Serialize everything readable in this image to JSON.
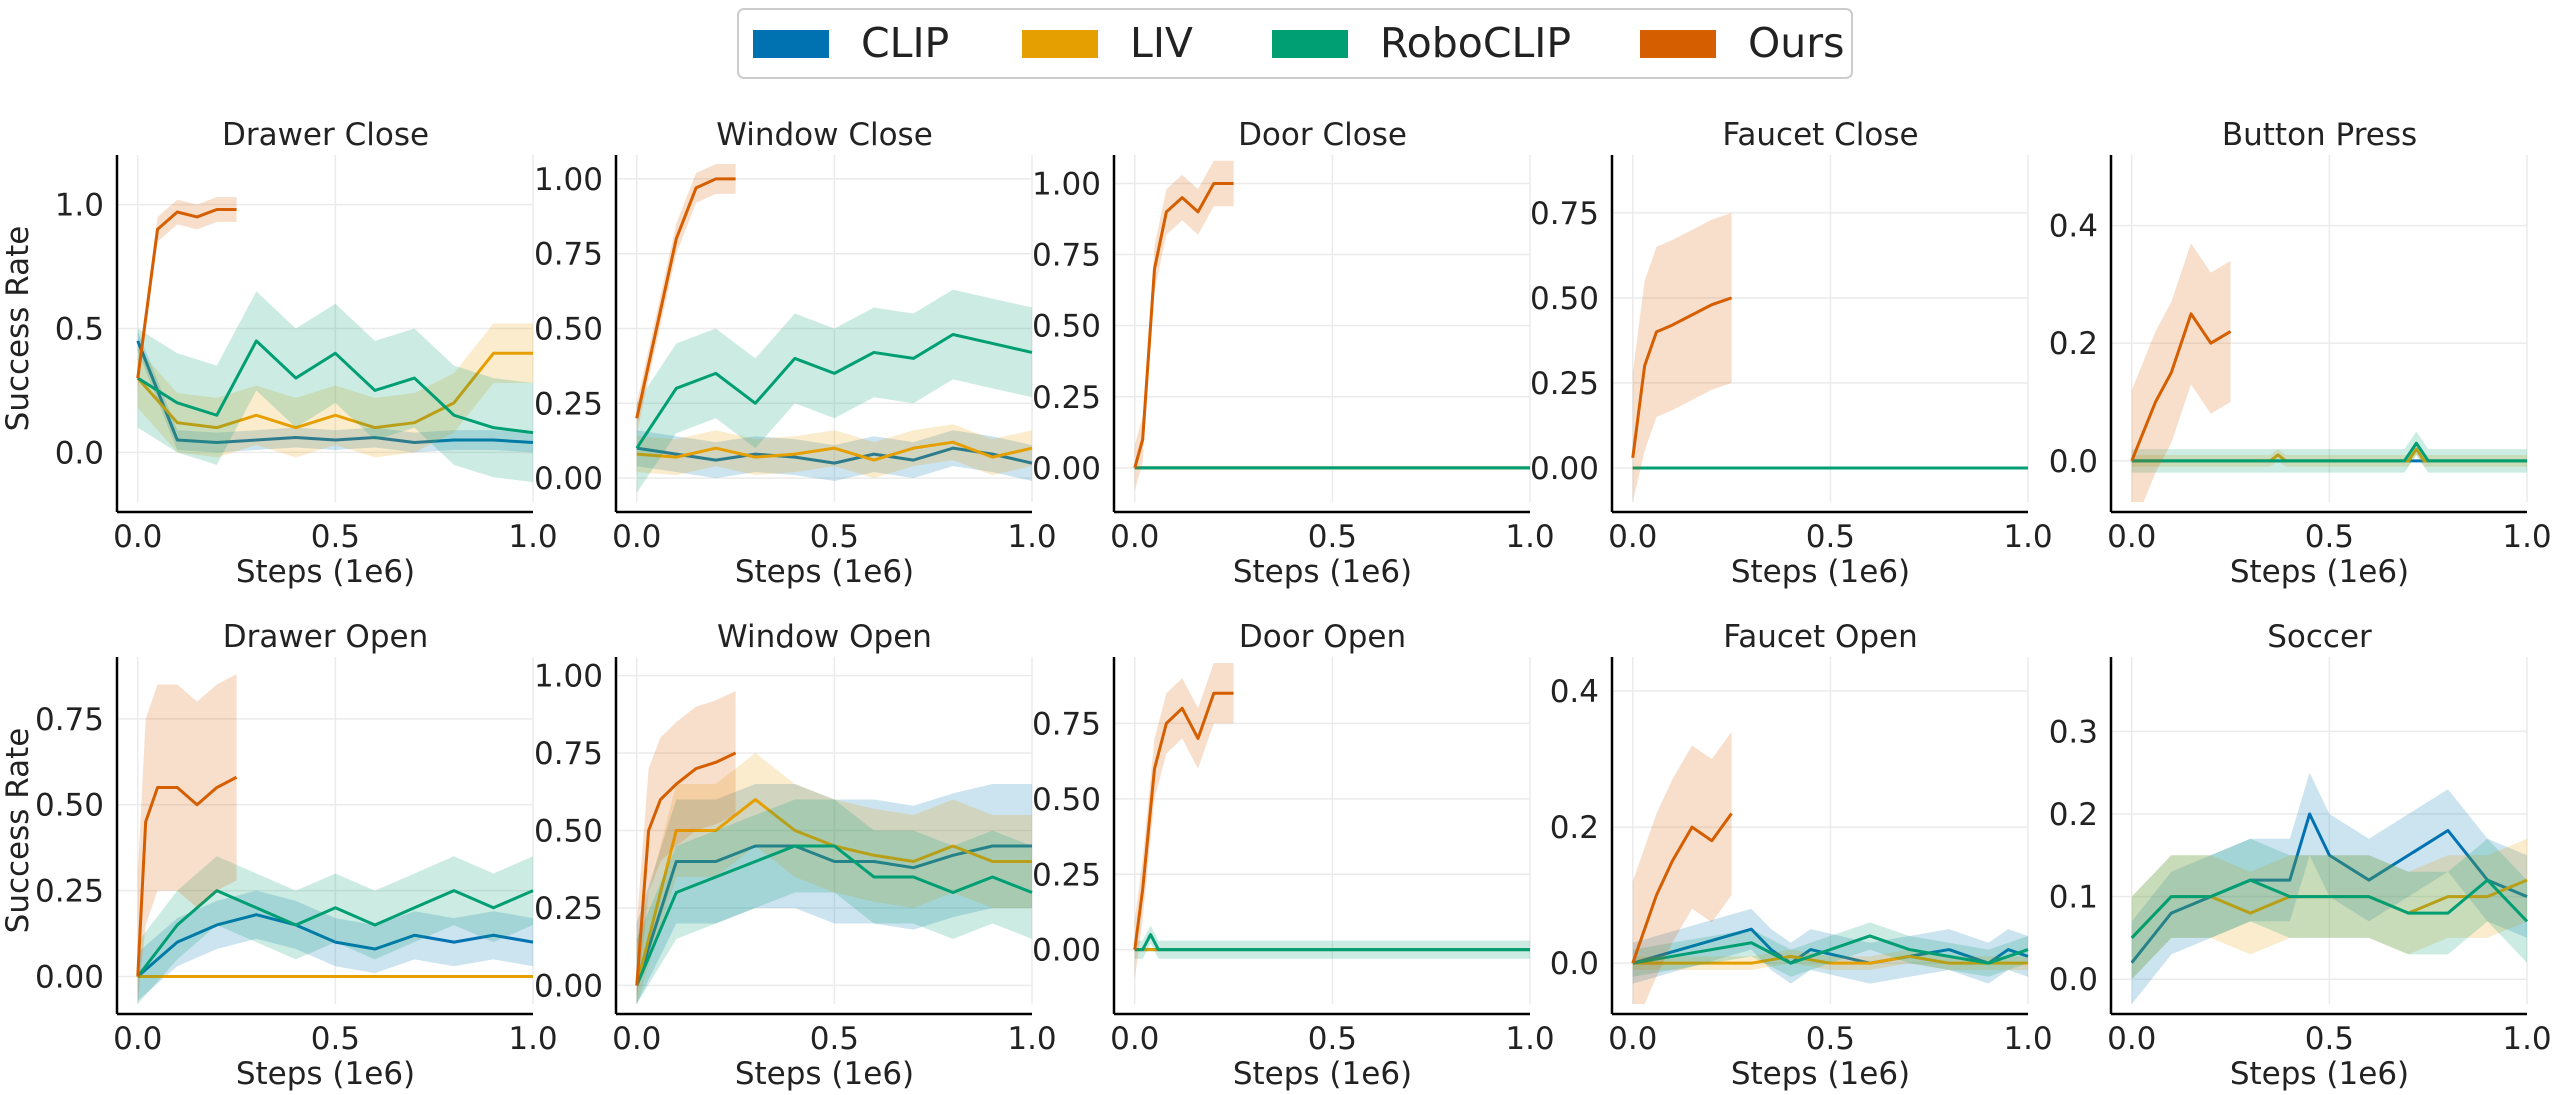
{
  "legend": [
    {
      "name": "CLIP",
      "color": "#0072b2"
    },
    {
      "name": "LIV",
      "color": "#e69f00"
    },
    {
      "name": "RoboCLIP",
      "color": "#009e73"
    },
    {
      "name": "Ours",
      "color": "#d55e00"
    }
  ],
  "chart_data": [
    {
      "type": "line",
      "title": "Drawer Close",
      "xlabel": "Steps (1e6)",
      "ylabel": "Success Rate",
      "xlim": [
        -0.05,
        1.0
      ],
      "ylim": [
        -0.2,
        1.2
      ],
      "xticks": [
        "0.0",
        "0.5",
        "1.0"
      ],
      "yticks": [
        "0.0",
        "0.5",
        "1.0"
      ],
      "series": [
        {
          "name": "CLIP",
          "x": [
            0,
            0.1,
            0.2,
            0.3,
            0.4,
            0.5,
            0.6,
            0.7,
            0.8,
            0.9,
            1.0
          ],
          "y": [
            0.45,
            0.05,
            0.04,
            0.05,
            0.06,
            0.05,
            0.06,
            0.04,
            0.05,
            0.05,
            0.04
          ],
          "band": 0.04
        },
        {
          "name": "LIV",
          "x": [
            0,
            0.1,
            0.2,
            0.3,
            0.4,
            0.5,
            0.6,
            0.7,
            0.8,
            0.9,
            1.0
          ],
          "y": [
            0.3,
            0.12,
            0.1,
            0.15,
            0.1,
            0.15,
            0.1,
            0.12,
            0.2,
            0.4,
            0.4
          ],
          "band": 0.12
        },
        {
          "name": "RoboCLIP",
          "x": [
            0,
            0.1,
            0.2,
            0.3,
            0.4,
            0.5,
            0.6,
            0.7,
            0.8,
            0.9,
            1.0
          ],
          "y": [
            0.3,
            0.2,
            0.15,
            0.45,
            0.3,
            0.4,
            0.25,
            0.3,
            0.15,
            0.1,
            0.08
          ],
          "band": 0.2
        },
        {
          "name": "Ours",
          "x": [
            0,
            0.05,
            0.1,
            0.15,
            0.2,
            0.25
          ],
          "y": [
            0.3,
            0.9,
            0.97,
            0.95,
            0.98,
            0.98
          ],
          "band": 0.05
        }
      ]
    },
    {
      "type": "line",
      "title": "Window Close",
      "xlabel": "Steps (1e6)",
      "ylabel": "",
      "xlim": [
        -0.05,
        1.0
      ],
      "ylim": [
        -0.08,
        1.08
      ],
      "xticks": [
        "0.0",
        "0.5",
        "1.0"
      ],
      "yticks": [
        "0.00",
        "0.25",
        "0.50",
        "0.75",
        "1.00"
      ],
      "series": [
        {
          "name": "CLIP",
          "x": [
            0,
            0.1,
            0.2,
            0.3,
            0.4,
            0.5,
            0.6,
            0.7,
            0.8,
            0.9,
            1.0
          ],
          "y": [
            0.1,
            0.08,
            0.06,
            0.08,
            0.07,
            0.05,
            0.08,
            0.06,
            0.1,
            0.08,
            0.05
          ],
          "band": 0.06
        },
        {
          "name": "LIV",
          "x": [
            0,
            0.1,
            0.2,
            0.3,
            0.4,
            0.5,
            0.6,
            0.7,
            0.8,
            0.9,
            1.0
          ],
          "y": [
            0.08,
            0.07,
            0.1,
            0.07,
            0.08,
            0.1,
            0.06,
            0.1,
            0.12,
            0.07,
            0.1
          ],
          "band": 0.06
        },
        {
          "name": "RoboCLIP",
          "x": [
            0,
            0.1,
            0.2,
            0.3,
            0.4,
            0.5,
            0.6,
            0.7,
            0.8,
            0.9,
            1.0
          ],
          "y": [
            0.1,
            0.3,
            0.35,
            0.25,
            0.4,
            0.35,
            0.42,
            0.4,
            0.48,
            0.45,
            0.42
          ],
          "band": 0.15
        },
        {
          "name": "Ours",
          "x": [
            0,
            0.05,
            0.1,
            0.15,
            0.2,
            0.25
          ],
          "y": [
            0.2,
            0.5,
            0.8,
            0.97,
            1.0,
            1.0
          ],
          "band": 0.05
        }
      ]
    },
    {
      "type": "line",
      "title": "Door Close",
      "xlabel": "Steps (1e6)",
      "ylabel": "",
      "xlim": [
        -0.05,
        1.0
      ],
      "ylim": [
        -0.12,
        1.1
      ],
      "xticks": [
        "0.0",
        "0.5",
        "1.0"
      ],
      "yticks": [
        "0.00",
        "0.25",
        "0.50",
        "0.75",
        "1.00"
      ],
      "series": [
        {
          "name": "CLIP",
          "x": [
            0,
            1.0
          ],
          "y": [
            0,
            0
          ],
          "band": 0
        },
        {
          "name": "LIV",
          "x": [
            0,
            1.0
          ],
          "y": [
            0,
            0
          ],
          "band": 0
        },
        {
          "name": "RoboCLIP",
          "x": [
            0,
            1.0
          ],
          "y": [
            0,
            0
          ],
          "band": 0
        },
        {
          "name": "Ours",
          "x": [
            0,
            0.02,
            0.05,
            0.08,
            0.12,
            0.16,
            0.2,
            0.25
          ],
          "y": [
            0,
            0.1,
            0.7,
            0.9,
            0.95,
            0.9,
            1.0,
            1.0
          ],
          "band": 0.08
        }
      ]
    },
    {
      "type": "line",
      "title": "Faucet Close",
      "xlabel": "Steps (1e6)",
      "ylabel": "",
      "xlim": [
        -0.05,
        1.0
      ],
      "ylim": [
        -0.1,
        0.92
      ],
      "xticks": [
        "0.0",
        "0.5",
        "1.0"
      ],
      "yticks": [
        "0.00",
        "0.25",
        "0.50",
        "0.75"
      ],
      "series": [
        {
          "name": "CLIP",
          "x": [
            0,
            1.0
          ],
          "y": [
            0,
            0
          ],
          "band": 0
        },
        {
          "name": "LIV",
          "x": [
            0,
            1.0
          ],
          "y": [
            0,
            0
          ],
          "band": 0
        },
        {
          "name": "RoboCLIP",
          "x": [
            0,
            1.0
          ],
          "y": [
            0,
            0
          ],
          "band": 0
        },
        {
          "name": "Ours",
          "x": [
            0,
            0.03,
            0.06,
            0.1,
            0.15,
            0.2,
            0.25
          ],
          "y": [
            0.03,
            0.3,
            0.4,
            0.42,
            0.45,
            0.48,
            0.5
          ],
          "band": 0.25
        }
      ]
    },
    {
      "type": "line",
      "title": "Button Press",
      "xlabel": "Steps (1e6)",
      "ylabel": "",
      "xlim": [
        -0.05,
        1.0
      ],
      "ylim": [
        -0.07,
        0.52
      ],
      "xticks": [
        "0.0",
        "0.5",
        "1.0"
      ],
      "yticks": [
        "0.0",
        "0.2",
        "0.4"
      ],
      "series": [
        {
          "name": "CLIP",
          "x": [
            0,
            1.0
          ],
          "y": [
            0,
            0
          ],
          "band": 0
        },
        {
          "name": "LIV",
          "x": [
            0,
            0.35,
            0.37,
            0.39,
            0.7,
            0.72,
            0.74,
            1.0
          ],
          "y": [
            0,
            0,
            0.01,
            0,
            0,
            0.02,
            0,
            0
          ],
          "band": 0.01
        },
        {
          "name": "RoboCLIP",
          "x": [
            0,
            0.69,
            0.72,
            0.75,
            1.0
          ],
          "y": [
            0,
            0,
            0.03,
            0,
            0
          ],
          "band": 0.02
        },
        {
          "name": "Ours",
          "x": [
            0,
            0.03,
            0.06,
            0.1,
            0.15,
            0.2,
            0.25
          ],
          "y": [
            0,
            0.05,
            0.1,
            0.15,
            0.25,
            0.2,
            0.22
          ],
          "band": 0.12
        }
      ]
    },
    {
      "type": "line",
      "title": "Drawer Open",
      "xlabel": "Steps (1e6)",
      "ylabel": "Success Rate",
      "xlim": [
        -0.05,
        1.0
      ],
      "ylim": [
        -0.08,
        0.93
      ],
      "xticks": [
        "0.0",
        "0.5",
        "1.0"
      ],
      "yticks": [
        "0.00",
        "0.25",
        "0.50",
        "0.75"
      ],
      "series": [
        {
          "name": "CLIP",
          "x": [
            0,
            0.1,
            0.2,
            0.3,
            0.4,
            0.5,
            0.6,
            0.7,
            0.8,
            0.9,
            1.0
          ],
          "y": [
            0,
            0.1,
            0.15,
            0.18,
            0.15,
            0.1,
            0.08,
            0.12,
            0.1,
            0.12,
            0.1
          ],
          "band": 0.07
        },
        {
          "name": "LIV",
          "x": [
            0,
            1.0
          ],
          "y": [
            0,
            0
          ],
          "band": 0
        },
        {
          "name": "RoboCLIP",
          "x": [
            0,
            0.1,
            0.2,
            0.3,
            0.4,
            0.5,
            0.6,
            0.7,
            0.8,
            0.9,
            1.0
          ],
          "y": [
            0,
            0.15,
            0.25,
            0.2,
            0.15,
            0.2,
            0.15,
            0.2,
            0.25,
            0.2,
            0.25
          ],
          "band": 0.1
        },
        {
          "name": "Ours",
          "x": [
            0,
            0.02,
            0.05,
            0.1,
            0.15,
            0.2,
            0.25
          ],
          "y": [
            0,
            0.45,
            0.55,
            0.55,
            0.5,
            0.55,
            0.58
          ],
          "band": 0.3
        }
      ]
    },
    {
      "type": "line",
      "title": "Window Open",
      "xlabel": "Steps (1e6)",
      "ylabel": "",
      "xlim": [
        -0.05,
        1.0
      ],
      "ylim": [
        -0.06,
        1.06
      ],
      "xticks": [
        "0.0",
        "0.5",
        "1.0"
      ],
      "yticks": [
        "0.00",
        "0.25",
        "0.50",
        "0.75",
        "1.00"
      ],
      "series": [
        {
          "name": "CLIP",
          "x": [
            0,
            0.1,
            0.2,
            0.3,
            0.4,
            0.5,
            0.6,
            0.7,
            0.8,
            0.9,
            1.0
          ],
          "y": [
            0,
            0.4,
            0.4,
            0.45,
            0.45,
            0.4,
            0.4,
            0.38,
            0.42,
            0.45,
            0.45
          ],
          "band": 0.2
        },
        {
          "name": "LIV",
          "x": [
            0,
            0.1,
            0.2,
            0.3,
            0.4,
            0.5,
            0.6,
            0.7,
            0.8,
            0.9,
            1.0
          ],
          "y": [
            0,
            0.5,
            0.5,
            0.6,
            0.5,
            0.45,
            0.42,
            0.4,
            0.45,
            0.4,
            0.4
          ],
          "band": 0.15
        },
        {
          "name": "RoboCLIP",
          "x": [
            0,
            0.1,
            0.2,
            0.3,
            0.4,
            0.5,
            0.6,
            0.7,
            0.8,
            0.9,
            1.0
          ],
          "y": [
            0,
            0.3,
            0.35,
            0.4,
            0.45,
            0.45,
            0.35,
            0.35,
            0.3,
            0.35,
            0.3
          ],
          "band": 0.15
        },
        {
          "name": "Ours",
          "x": [
            0,
            0.03,
            0.06,
            0.1,
            0.15,
            0.2,
            0.25
          ],
          "y": [
            0,
            0.5,
            0.6,
            0.65,
            0.7,
            0.72,
            0.75
          ],
          "band": 0.2
        }
      ]
    },
    {
      "type": "line",
      "title": "Door Open",
      "xlabel": "Steps (1e6)",
      "ylabel": "",
      "xlim": [
        -0.05,
        1.0
      ],
      "ylim": [
        -0.18,
        0.97
      ],
      "xticks": [
        "0.0",
        "0.5",
        "1.0"
      ],
      "yticks": [
        "0.00",
        "0.25",
        "0.50",
        "0.75"
      ],
      "series": [
        {
          "name": "CLIP",
          "x": [
            0,
            1.0
          ],
          "y": [
            0,
            0
          ],
          "band": 0
        },
        {
          "name": "LIV",
          "x": [
            0,
            1.0
          ],
          "y": [
            0,
            0
          ],
          "band": 0
        },
        {
          "name": "RoboCLIP",
          "x": [
            0,
            0.02,
            0.04,
            0.06,
            1.0
          ],
          "y": [
            0,
            0,
            0.05,
            0,
            0
          ],
          "band": 0.03
        },
        {
          "name": "Ours",
          "x": [
            0,
            0.02,
            0.05,
            0.08,
            0.12,
            0.16,
            0.2,
            0.25
          ],
          "y": [
            0,
            0.2,
            0.6,
            0.75,
            0.8,
            0.7,
            0.85,
            0.85
          ],
          "band": 0.1
        }
      ]
    },
    {
      "type": "line",
      "title": "Faucet Open",
      "xlabel": "Steps (1e6)",
      "ylabel": "",
      "xlim": [
        -0.05,
        1.0
      ],
      "ylim": [
        -0.06,
        0.45
      ],
      "xticks": [
        "0.0",
        "0.5",
        "1.0"
      ],
      "yticks": [
        "0.0",
        "0.2",
        "0.4"
      ],
      "series": [
        {
          "name": "CLIP",
          "x": [
            0,
            0.3,
            0.35,
            0.4,
            0.45,
            0.6,
            0.7,
            0.8,
            0.9,
            0.95,
            1.0
          ],
          "y": [
            0,
            0.05,
            0.02,
            0,
            0.02,
            0,
            0.01,
            0.02,
            0,
            0.02,
            0.01
          ],
          "band": 0.03
        },
        {
          "name": "LIV",
          "x": [
            0,
            0.3,
            0.4,
            0.5,
            0.6,
            0.7,
            0.8,
            0.9,
            1.0
          ],
          "y": [
            0,
            0,
            0.01,
            0,
            0,
            0.01,
            0,
            0,
            0
          ],
          "band": 0.01
        },
        {
          "name": "RoboCLIP",
          "x": [
            0,
            0.2,
            0.3,
            0.4,
            0.5,
            0.6,
            0.7,
            0.8,
            0.9,
            1.0
          ],
          "y": [
            0,
            0.02,
            0.03,
            0,
            0.02,
            0.04,
            0.02,
            0.01,
            0,
            0.02
          ],
          "band": 0.02
        },
        {
          "name": "Ours",
          "x": [
            0,
            0.03,
            0.06,
            0.1,
            0.15,
            0.2,
            0.25
          ],
          "y": [
            0,
            0.05,
            0.1,
            0.15,
            0.2,
            0.18,
            0.22
          ],
          "band": 0.12
        }
      ]
    },
    {
      "type": "line",
      "title": "Soccer",
      "xlabel": "Steps (1e6)",
      "ylabel": "",
      "xlim": [
        -0.05,
        1.0
      ],
      "ylim": [
        -0.03,
        0.39
      ],
      "xticks": [
        "0.0",
        "0.5",
        "1.0"
      ],
      "yticks": [
        "0.0",
        "0.1",
        "0.2",
        "0.3"
      ],
      "series": [
        {
          "name": "CLIP",
          "x": [
            0,
            0.1,
            0.2,
            0.3,
            0.4,
            0.45,
            0.5,
            0.6,
            0.7,
            0.8,
            0.9,
            1.0
          ],
          "y": [
            0.02,
            0.08,
            0.1,
            0.12,
            0.12,
            0.2,
            0.15,
            0.12,
            0.15,
            0.18,
            0.12,
            0.1
          ],
          "band": 0.05
        },
        {
          "name": "LIV",
          "x": [
            0,
            0.1,
            0.2,
            0.3,
            0.4,
            0.5,
            0.6,
            0.7,
            0.8,
            0.9,
            1.0
          ],
          "y": [
            0.05,
            0.1,
            0.1,
            0.08,
            0.1,
            0.1,
            0.1,
            0.08,
            0.1,
            0.1,
            0.12
          ],
          "band": 0.05
        },
        {
          "name": "RoboCLIP",
          "x": [
            0,
            0.1,
            0.2,
            0.3,
            0.4,
            0.5,
            0.6,
            0.7,
            0.8,
            0.9,
            1.0
          ],
          "y": [
            0.05,
            0.1,
            0.1,
            0.12,
            0.1,
            0.1,
            0.1,
            0.08,
            0.08,
            0.12,
            0.07
          ],
          "band": 0.05
        },
        {
          "name": "Ours",
          "x": [],
          "y": [],
          "band": 0
        }
      ]
    }
  ]
}
